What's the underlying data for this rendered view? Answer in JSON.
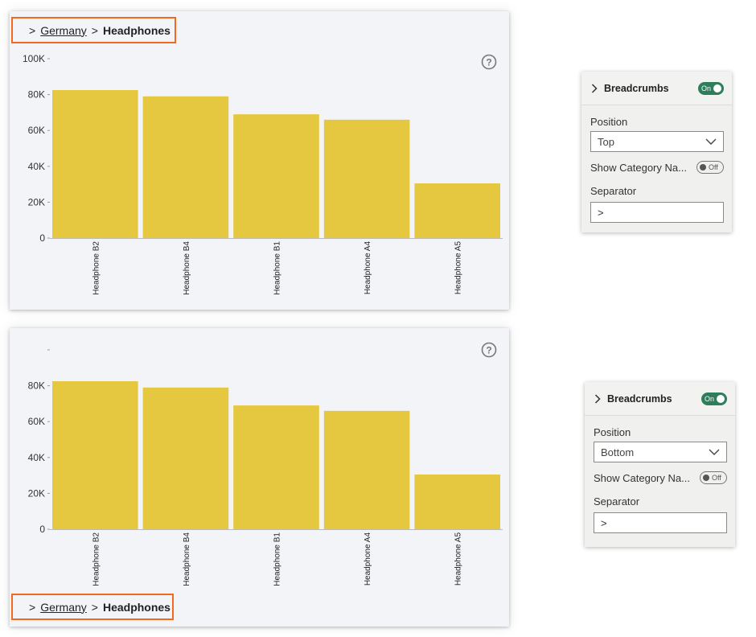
{
  "breadcrumb": {
    "separator": ">",
    "country": "Germany",
    "current": "Headphones"
  },
  "panel_top": {
    "title": "Breadcrumbs",
    "toggle": "On",
    "position_label": "Position",
    "position_value": "Top",
    "show_category_label": "Show Category Na...",
    "show_category_toggle": "Off",
    "separator_label": "Separator",
    "separator_value": ">"
  },
  "panel_bottom": {
    "title": "Breadcrumbs",
    "toggle": "On",
    "position_label": "Position",
    "position_value": "Bottom",
    "show_category_label": "Show Category Na...",
    "show_category_toggle": "Off",
    "separator_label": "Separator",
    "separator_value": ">"
  },
  "colors": {
    "bar": "#e6c740",
    "accent": "#f26b1d",
    "toggle_on": "#2e7d5b"
  },
  "chart_data": [
    {
      "type": "bar",
      "categories": [
        "Headphone B2",
        "Headphone B4",
        "Headphone B1",
        "Headphone A4",
        "Headphone A5"
      ],
      "values": [
        82500,
        79000,
        69000,
        66000,
        30500
      ],
      "ylim": [
        0,
        100000
      ],
      "yticks": [
        "0",
        "20K",
        "40K",
        "60K",
        "80K",
        "100K"
      ],
      "grid": false
    },
    {
      "type": "bar",
      "categories": [
        "Headphone B2",
        "Headphone B4",
        "Headphone B1",
        "Headphone A4",
        "Headphone A5"
      ],
      "values": [
        82500,
        79000,
        69000,
        66000,
        30500
      ],
      "ylim": [
        0,
        100000
      ],
      "yticks": [
        "0",
        "20K",
        "40K",
        "60K",
        "80K",
        ""
      ],
      "grid": false
    }
  ]
}
